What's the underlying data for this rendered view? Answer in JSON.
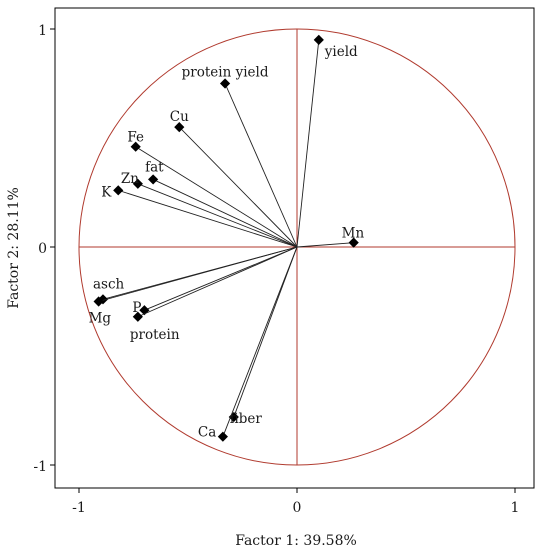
{
  "chart_data": {
    "type": "scatter",
    "xlabel": "Factor 1: 39.58%",
    "ylabel": "Factor 2: 28.11%",
    "xlim": [
      -1.1,
      1.1
    ],
    "ylim": [
      -1.1,
      1.1
    ],
    "x_ticks": [
      "-1",
      "0",
      "1"
    ],
    "y_ticks": [
      "1",
      "0",
      "-1"
    ],
    "grid": false,
    "unit_circle": true,
    "vectors_from_origin": true,
    "colors": {
      "circle": "#b03a2e",
      "axes_cross": "#b03a2e",
      "vector": "#222222",
      "marker": "#000000",
      "frame": "#000000"
    },
    "points": [
      {
        "label": "yield",
        "x": 0.1,
        "y": 0.95
      },
      {
        "label": "protein yield",
        "x": -0.33,
        "y": 0.75
      },
      {
        "label": "Cu",
        "x": -0.54,
        "y": 0.55
      },
      {
        "label": "Fe",
        "x": -0.74,
        "y": 0.46
      },
      {
        "label": "fat",
        "x": -0.66,
        "y": 0.31
      },
      {
        "label": "Zn",
        "x": -0.73,
        "y": 0.29
      },
      {
        "label": "K",
        "x": -0.82,
        "y": 0.26
      },
      {
        "label": "Mn",
        "x": 0.26,
        "y": 0.02
      },
      {
        "label": "asch",
        "x": -0.89,
        "y": -0.24
      },
      {
        "label": "Mg",
        "x": -0.91,
        "y": -0.25
      },
      {
        "label": "P",
        "x": -0.7,
        "y": -0.29
      },
      {
        "label": "protein",
        "x": -0.73,
        "y": -0.32
      },
      {
        "label": "fiber",
        "x": -0.29,
        "y": -0.78
      },
      {
        "label": "Ca",
        "x": -0.34,
        "y": -0.87
      }
    ]
  }
}
